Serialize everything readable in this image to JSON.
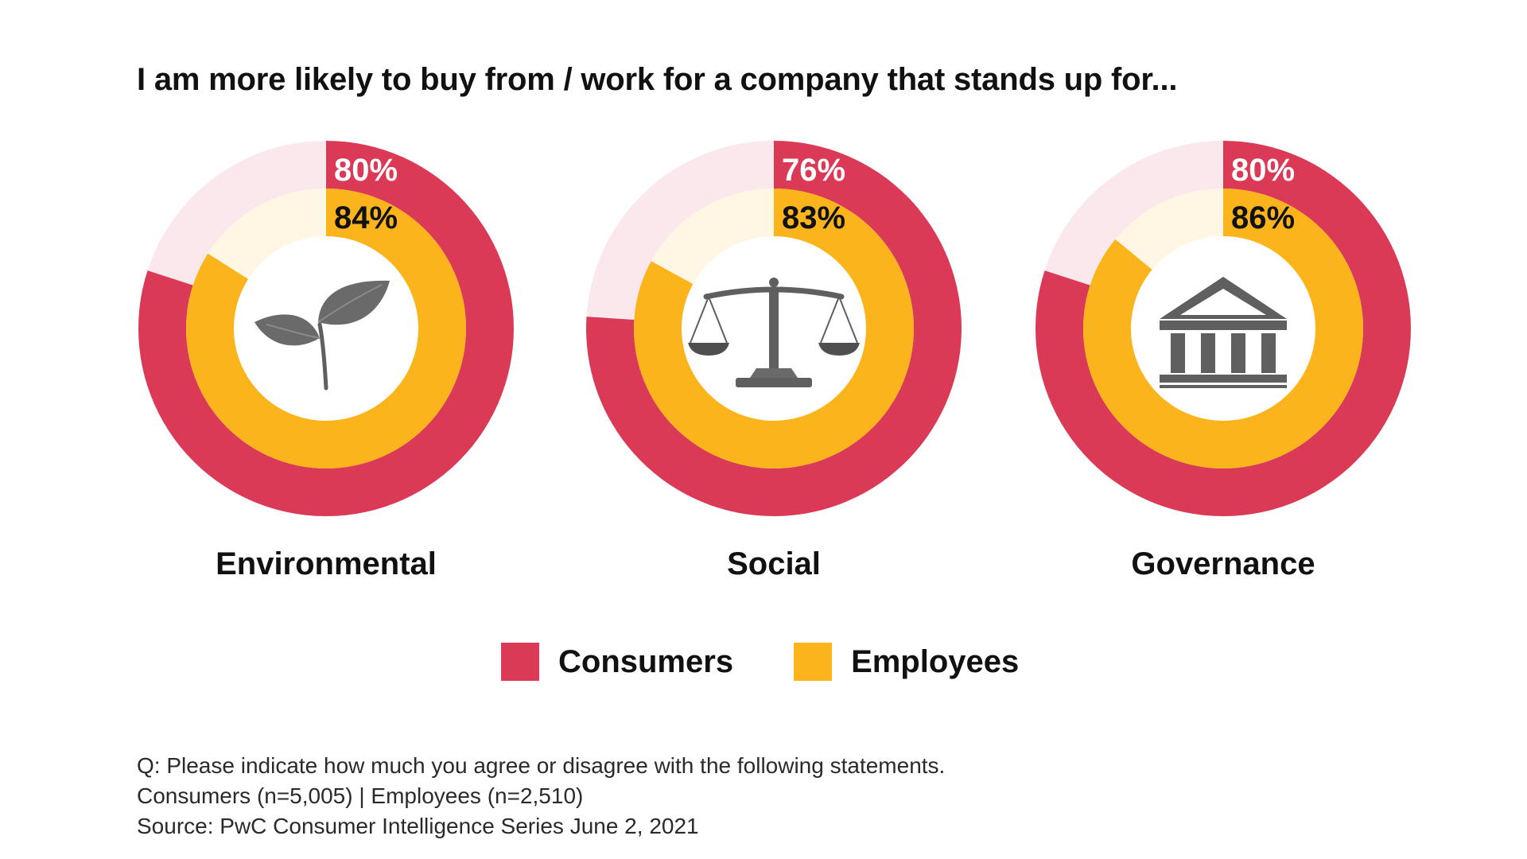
{
  "title": "I am more likely to buy from / work for a company that stands up for...",
  "colors": {
    "consumers": "#DB3A57",
    "consumers_remainder": "#FBE8EC",
    "employees": "#FCB41C",
    "employees_remainder": "#FFF6E4",
    "consumers_label": "#ffffff",
    "employees_label": "#111111"
  },
  "chart_data": [
    {
      "type": "pie",
      "category": "Environmental",
      "icon": "sprout-icon",
      "series": [
        {
          "name": "Consumers",
          "value": 80,
          "label": "80%"
        },
        {
          "name": "Employees",
          "value": 84,
          "label": "84%"
        }
      ]
    },
    {
      "type": "pie",
      "category": "Social",
      "icon": "scales-of-justice-icon",
      "series": [
        {
          "name": "Consumers",
          "value": 76,
          "label": "76%"
        },
        {
          "name": "Employees",
          "value": 83,
          "label": "83%"
        }
      ]
    },
    {
      "type": "pie",
      "category": "Governance",
      "icon": "government-building-icon",
      "series": [
        {
          "name": "Consumers",
          "value": 80,
          "label": "80%"
        },
        {
          "name": "Employees",
          "value": 86,
          "label": "86%"
        }
      ]
    }
  ],
  "legend": {
    "items": [
      {
        "name": "Consumers",
        "color": "#DB3A57"
      },
      {
        "name": "Employees",
        "color": "#FCB41C"
      }
    ]
  },
  "notes": {
    "question": "Q: Please indicate how much you agree or disagree with the following statements.",
    "sample": "Consumers (n=5,005) | Employees (n=2,510)",
    "source": "Source: PwC Consumer Intelligence Series June 2, 2021"
  }
}
